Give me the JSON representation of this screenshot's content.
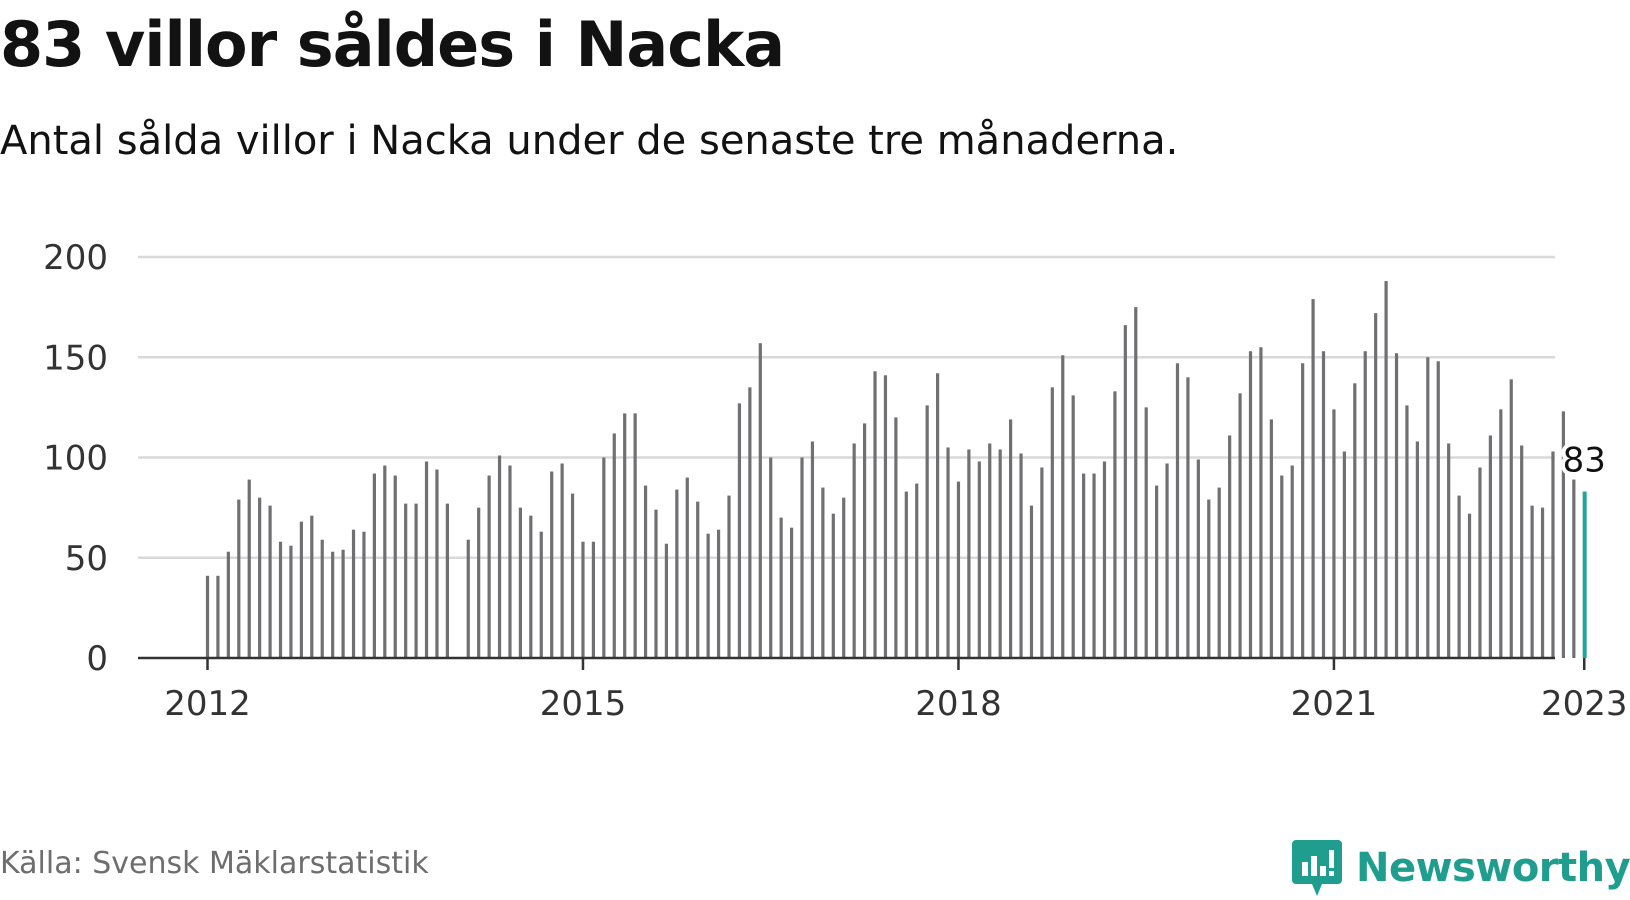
{
  "title": "83 villor såldes i Nacka",
  "subtitle": "Antal sålda villor i Nacka under de senaste tre månaderna.",
  "source": "Källa: Svensk Mäklarstatistik",
  "brand": "Newsworthy",
  "colors": {
    "bar": "#707073",
    "highlight": "#1fa59a",
    "grid": "#d9d9d9",
    "axis": "#333333",
    "brand": "#1f9d8f"
  },
  "chart_data": {
    "type": "bar",
    "start": "2012-01",
    "x_ticks": [
      "2012",
      "2015",
      "2018",
      "2021",
      "2023"
    ],
    "y_ticks": [
      0,
      50,
      100,
      150,
      200
    ],
    "ylim": [
      0,
      200
    ],
    "grid": true,
    "highlight_label": "83",
    "values": [
      41,
      41,
      53,
      79,
      89,
      80,
      76,
      58,
      56,
      68,
      71,
      59,
      53,
      54,
      64,
      63,
      92,
      96,
      91,
      77,
      77,
      98,
      94,
      77,
      null,
      59,
      75,
      91,
      101,
      96,
      75,
      71,
      63,
      93,
      97,
      82,
      58,
      58,
      100,
      112,
      122,
      122,
      86,
      74,
      57,
      84,
      90,
      78,
      62,
      64,
      81,
      127,
      135,
      157,
      100,
      70,
      65,
      100,
      108,
      85,
      72,
      80,
      107,
      117,
      143,
      141,
      120,
      83,
      87,
      126,
      142,
      105,
      88,
      104,
      98,
      107,
      104,
      119,
      102,
      76,
      95,
      135,
      151,
      131,
      92,
      92,
      98,
      133,
      166,
      175,
      125,
      86,
      97,
      147,
      140,
      99,
      79,
      85,
      111,
      132,
      153,
      155,
      119,
      91,
      96,
      147,
      179,
      153,
      124,
      103,
      137,
      153,
      172,
      188,
      152,
      126,
      108,
      150,
      148,
      107,
      81,
      72,
      95,
      111,
      124,
      139,
      106,
      76,
      75,
      103,
      123,
      89,
      83
    ]
  }
}
